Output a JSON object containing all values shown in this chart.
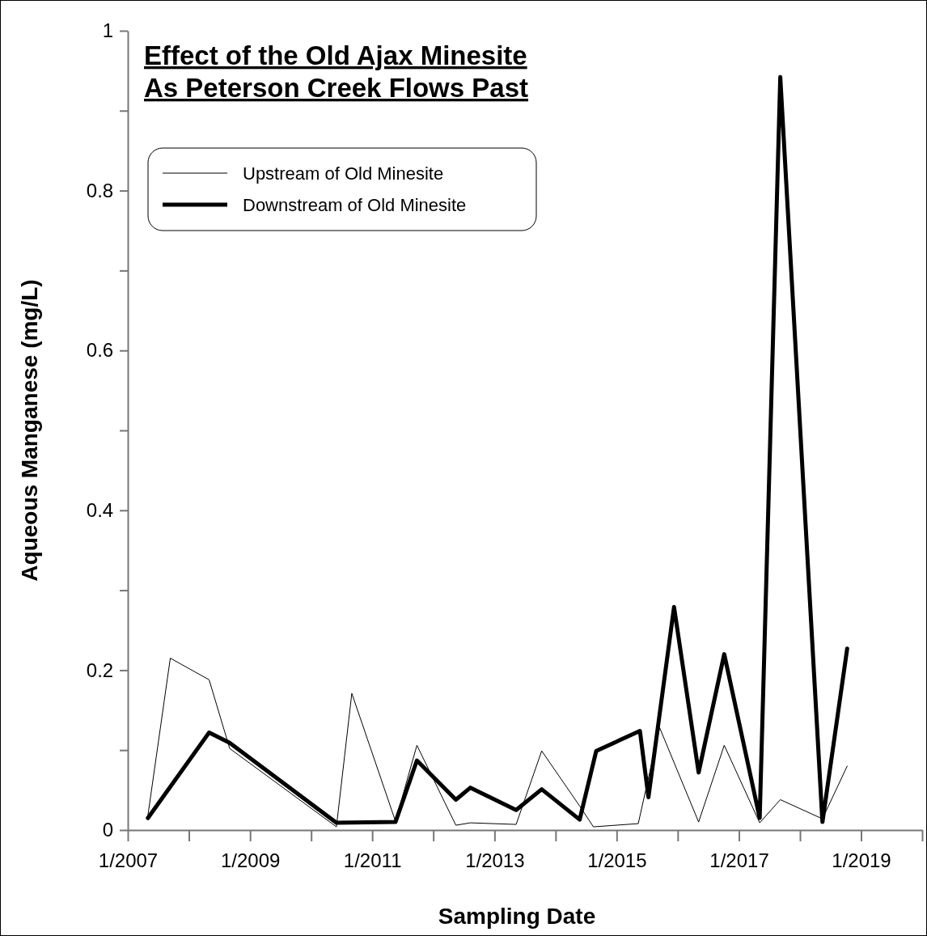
{
  "chart_data": {
    "type": "line",
    "title": "Effect of the Old Ajax Minesite\nAs Peterson Creek Flows Past",
    "xlabel": "Sampling Date",
    "ylabel": "Aqueous Manganese (mg/L)",
    "xlim": [
      "2007-01-01",
      "2020-01-01"
    ],
    "ylim": [
      0,
      1
    ],
    "xticks": [
      {
        "value": "2007-01",
        "label": "1/2007"
      },
      {
        "value": "2008-01",
        "label": null
      },
      {
        "value": "2009-01",
        "label": "1/2009"
      },
      {
        "value": "2010-01",
        "label": null
      },
      {
        "value": "2011-01",
        "label": "1/2011"
      },
      {
        "value": "2012-01",
        "label": null
      },
      {
        "value": "2013-01",
        "label": "1/2013"
      },
      {
        "value": "2014-01",
        "label": null
      },
      {
        "value": "2015-01",
        "label": "1/2015"
      },
      {
        "value": "2016-01",
        "label": null
      },
      {
        "value": "2017-01",
        "label": "1/2017"
      },
      {
        "value": "2018-01",
        "label": null
      },
      {
        "value": "2019-01",
        "label": "1/2019"
      },
      {
        "value": "2020-01",
        "label": null
      }
    ],
    "yticks": [
      0,
      {
        "value": 0.1,
        "label": null
      },
      0.2,
      {
        "value": 0.3,
        "label": null
      },
      0.4,
      {
        "value": 0.5,
        "label": null
      },
      0.6,
      {
        "value": 0.7,
        "label": null
      },
      0.8,
      {
        "value": 0.9,
        "label": null
      },
      1
    ],
    "grid": false,
    "legend": "top left",
    "marker": "none",
    "series": [
      {
        "name": "Upstream of Old Minesite",
        "color": "#000000",
        "x": [
          "2007-05-01",
          "2007-09-12",
          "2008-05-01",
          "2008-09-01",
          "2010-06-01",
          "2010-09-01",
          "2011-05-20",
          "2011-09-25",
          "2012-05-15",
          "2012-08-10",
          "2013-05-10",
          "2013-10-10",
          "2014-05-25",
          "2014-08-15",
          "2015-05-10",
          "2015-09-15",
          "2016-05-05",
          "2016-10-05",
          "2017-05-05",
          "2017-09-05",
          "2018-05-15",
          "2018-10-10"
        ],
        "values": [
          0.018,
          0.215,
          0.188,
          0.102,
          0.004,
          0.171,
          0.011,
          0.106,
          0.006,
          0.009,
          0.007,
          0.099,
          0.03,
          0.004,
          0.008,
          0.128,
          0.01,
          0.106,
          0.009,
          0.038,
          0.014,
          0.08
        ]
      },
      {
        "name": "Downstream of Old Minesite",
        "color": "#000000",
        "x": [
          "2007-05-01",
          "2008-05-01",
          "2008-09-01",
          "2010-06-01",
          "2011-05-20",
          "2011-09-25",
          "2012-05-15",
          "2012-08-10",
          "2013-05-10",
          "2013-10-10",
          "2014-05-25",
          "2014-09-01",
          "2015-05-20",
          "2015-07-10",
          "2015-12-10",
          "2016-05-05",
          "2016-10-05",
          "2017-05-05",
          "2017-09-05",
          "2018-05-15",
          "2018-10-10"
        ],
        "values": [
          0.015,
          0.122,
          0.109,
          0.009,
          0.01,
          0.087,
          0.038,
          0.053,
          0.025,
          0.051,
          0.013,
          0.099,
          0.124,
          0.041,
          0.279,
          0.072,
          0.22,
          0.015,
          0.942,
          0.01,
          0.227
        ]
      }
    ]
  }
}
